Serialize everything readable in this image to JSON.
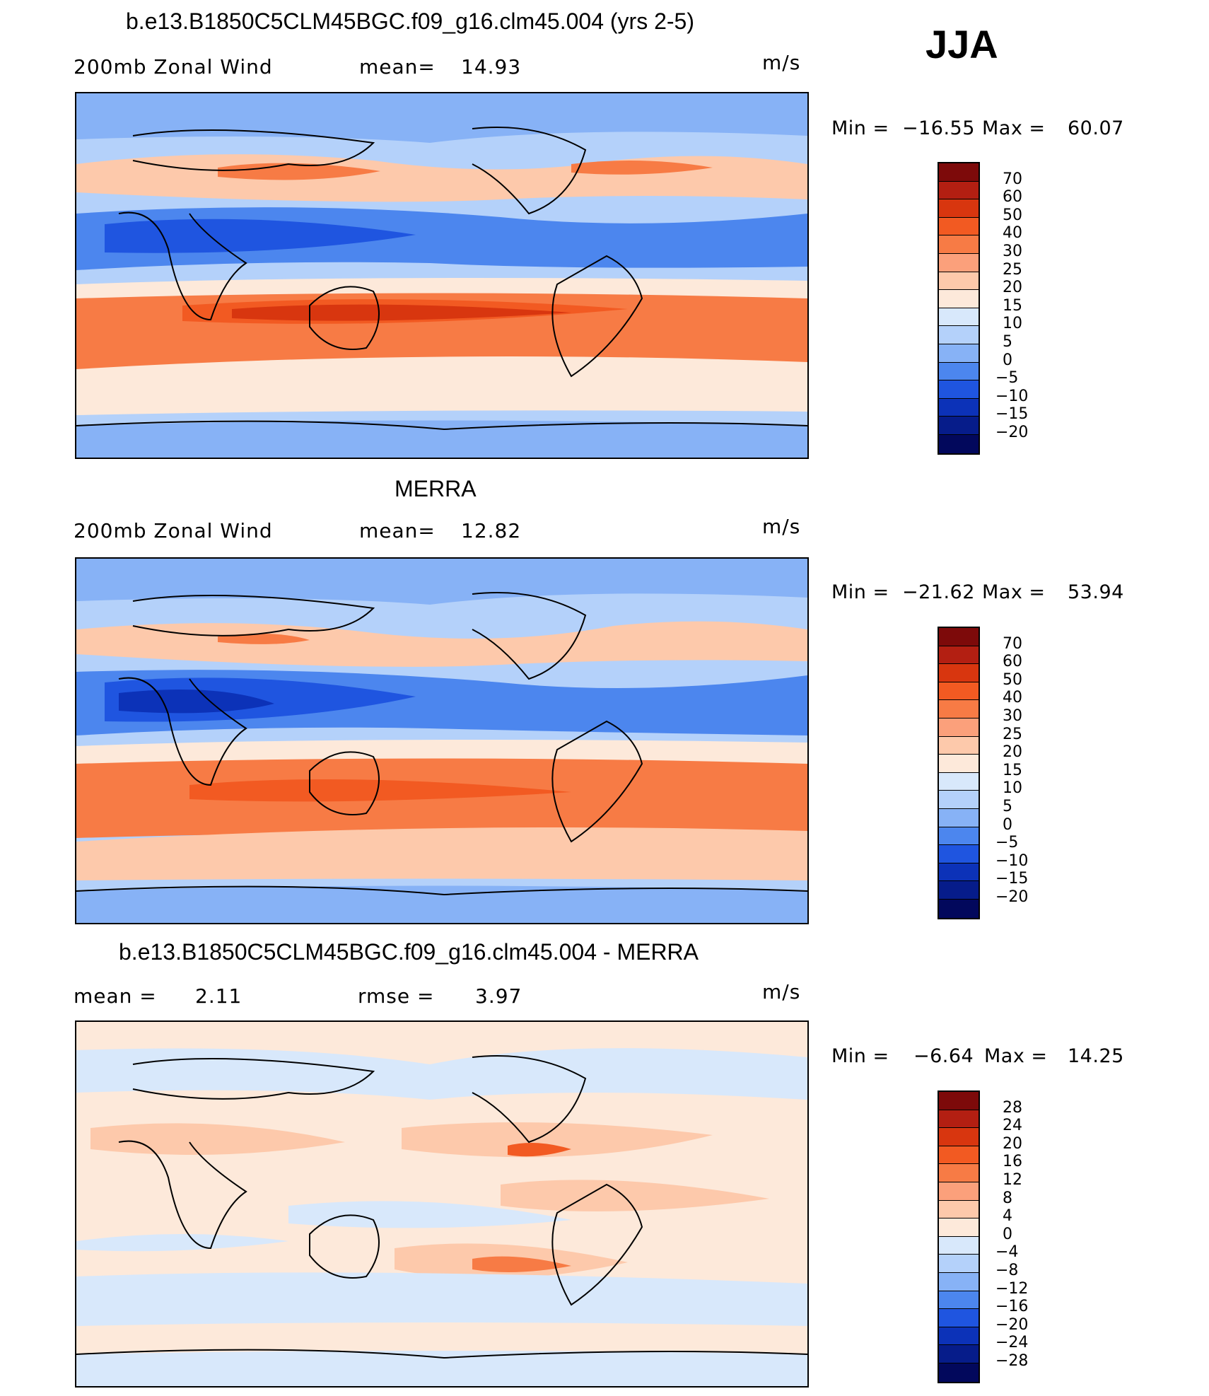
{
  "season": "JJA",
  "panels": [
    {
      "id": "model",
      "title": "b.e13.B1850C5CLM45BGC.f09_g16.clm45.004 (yrs 2-5)",
      "variable": "200mb Zonal Wind",
      "stat1_label": "mean=",
      "stat1_value": "14.93",
      "stat2_label": "",
      "stat2_value": "",
      "units": "m/s",
      "min_label": "Min =",
      "min_value": "−16.55",
      "max_label": "Max =",
      "max_value": "60.07",
      "levels": [
        "70",
        "60",
        "50",
        "40",
        "30",
        "25",
        "20",
        "15",
        "10",
        "5",
        "0",
        "−5",
        "−10",
        "−15",
        "−20"
      ]
    },
    {
      "id": "obs",
      "title": "MERRA",
      "variable": "200mb Zonal Wind",
      "stat1_label": "mean=",
      "stat1_value": "12.82",
      "stat2_label": "",
      "stat2_value": "",
      "units": "m/s",
      "min_label": "Min =",
      "min_value": "−21.62",
      "max_label": "Max =",
      "max_value": "53.94",
      "levels": [
        "70",
        "60",
        "50",
        "40",
        "30",
        "25",
        "20",
        "15",
        "10",
        "5",
        "0",
        "−5",
        "−10",
        "−15",
        "−20"
      ]
    },
    {
      "id": "diff",
      "title": "b.e13.B1850C5CLM45BGC.f09_g16.clm45.004 - MERRA",
      "variable": "",
      "stat1_label": "mean =",
      "stat1_value": "2.11",
      "stat2_label": "rmse =",
      "stat2_value": "3.97",
      "units": "m/s",
      "min_label": "Min =",
      "min_value": "−6.64",
      "max_label": "Max =",
      "max_value": "14.25",
      "levels": [
        "28",
        "24",
        "20",
        "16",
        "12",
        "8",
        "4",
        "0",
        "−4",
        "−8",
        "−12",
        "−16",
        "−20",
        "−24",
        "−28"
      ]
    }
  ],
  "colors": {
    "abs_scale": [
      "#7d0a0a",
      "#b31f12",
      "#d8360f",
      "#f25a22",
      "#f77b45",
      "#fba07b",
      "#fdc9ab",
      "#fde9da",
      "#d8e8fb",
      "#b4d1fa",
      "#87b2f6",
      "#4c86ee",
      "#1f55e0",
      "#0c32b8",
      "#061c8a",
      "#02085c"
    ],
    "diff_scale": [
      "#7d0a0a",
      "#b31f12",
      "#d8360f",
      "#f25a22",
      "#f77b45",
      "#fba07b",
      "#fdc9ab",
      "#fde9da",
      "#d8e8fb",
      "#b4d1fa",
      "#87b2f6",
      "#4c86ee",
      "#1f55e0",
      "#0c32b8",
      "#061c8a",
      "#02085c"
    ]
  }
}
